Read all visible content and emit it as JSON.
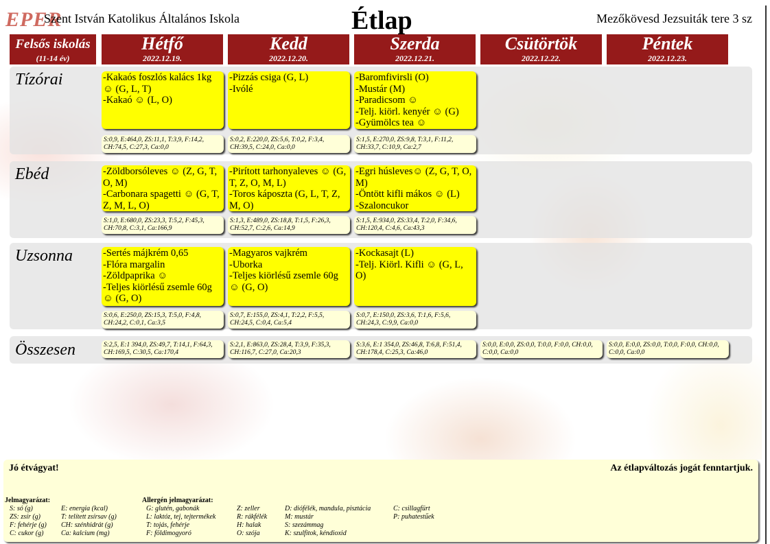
{
  "header": {
    "logo": "EPER",
    "school": "Szent István Katolikus Általános Iskola",
    "title": "Étlap",
    "address": "Mezőkövesd Jezsuiták tere 3 sz"
  },
  "group": {
    "label": "Felsős iskolás",
    "sub": "(11-14 év)"
  },
  "days": [
    {
      "name": "Hétfő",
      "date": "2022.12.19."
    },
    {
      "name": "Kedd",
      "date": "2022.12.20."
    },
    {
      "name": "Szerda",
      "date": "2022.12.21."
    },
    {
      "name": "Csütörtök",
      "date": "2022.12.22."
    },
    {
      "name": "Péntek",
      "date": "2022.12.23."
    }
  ],
  "meals": [
    {
      "label": "Tízórai",
      "menus": [
        [
          "-Kakaós foszlós kalács 1kg ☺ (G, L, T)",
          "-Kakaó ☺ (L, O)"
        ],
        [
          "-Pizzás csiga (G, L)",
          "-Ivólé"
        ],
        [
          "-Baromfivirsli (O)",
          "-Mustár (M)",
          "-Paradicsom ☺",
          "-Telj. kiörl. kenyér ☺ (G)",
          "-Gyümölcs tea ☺"
        ]
      ],
      "nutrition": [
        "S:0,9, E:464,0, ZS:11,1, T:3,9, F:14,2, CH:74,5, C:27,3, Ca:0,0",
        "S:0,2, E:220,0, ZS:5,6, T:0,2, F:3,4, CH:39,5, C:24,0, Ca:0,0",
        "S:1,5, E:270,0, ZS:9,8, T:3,1, F:11,2, CH:33,7, C:10,9, Ca:2,7"
      ]
    },
    {
      "label": "Ebéd",
      "menus": [
        [
          "-Zöldborsóleves ☺ (Z, G, T, O, M)",
          "-Carbonara spagetti ☺ (G, T, Z, M, L, O)"
        ],
        [
          "-Pirított tarhonyaleves ☺ (G, T, Z, O, M, L)",
          "-Toros káposzta (G, L, T, Z, M, O)"
        ],
        [
          "-Egri húsleves☺ (Z, G, T, O, M)",
          "-Öntött kifli mákos ☺ (L)",
          "-Szaloncukor"
        ]
      ],
      "nutrition": [
        "S:1,0, E:680,0, ZS:23,3, T:5,2, F:45,3, CH:70,8, C:3,1, Ca:166,9",
        "S:1,3, E:489,0, ZS:18,8, T:1,5, F:26,3, CH:52,7, C:2,6, Ca:14,9",
        "S:1,5, E:934,0, ZS:33,4, T:2,0, F:34,6, CH:120,4, C:4,6, Ca:43,3"
      ]
    },
    {
      "label": "Uzsonna",
      "menus": [
        [
          "-Sertés májkrém 0,65",
          "-Flóra margalin",
          "-Zöldpaprika ☺",
          "-Teljes kiörlésű zsemle 60g ☺ (G, O)"
        ],
        [
          "-Magyaros vajkrém",
          "-Uborka",
          "-Teljes kiörlésű zsemle 60g ☺ (G, O)"
        ],
        [
          "-Kockasajt (L)",
          "-Telj. Kiörl. Kifli ☺ (G, L, O)"
        ]
      ],
      "nutrition": [
        "S:0,6, E:250,0, ZS:15,3, T:5,0, F:4,8, CH:24,2, C:0,1, Ca:3,5",
        "S:0,7, E:155,0, ZS:4,1, T:2,2, F:5,5, CH:24,5, C:0,4, Ca:5,4",
        "S:0,7, E:150,0, ZS:3,6, T:1,6, F:5,6, CH:24,3, C:9,9, Ca:0,0"
      ]
    },
    {
      "label": "Összesen",
      "menus": [],
      "nutrition": [
        "S:2,5, E:1 394,0, ZS:49,7, T:14,1, F:64,3, CH:169,5, C:30,5, Ca:170,4",
        "S:2,1, E:863,0, ZS:28,4, T:3,9, F:35,3, CH:116,7, C:27,0, Ca:20,3",
        "S:3,6, E:1 354,0, ZS:46,8, T:6,8, F:51,4, CH:178,4, C:25,3, Ca:46,0",
        "S:0,0, E:0,0, ZS:0,0, T:0,0, F:0,0, CH:0,0, C:0,0, Ca:0,0",
        "S:0,0, E:0,0, ZS:0,0, T:0,0, F:0,0, CH:0,0, C:0,0, Ca:0,0"
      ]
    }
  ],
  "footer": {
    "left": "Jó étvágyat!",
    "right": "Az étlapváltozás jogát fenntartjuk.",
    "legend_title": "Jelmagyarázat:",
    "allergen_title": "Allergén jelmagyarázat:",
    "legend_cols": [
      [
        "S: só (g)",
        "ZS: zsír (g)",
        "F: fehérje (g)",
        "C: cukor (g)"
      ],
      [
        "E: energia (kcal)",
        "T: telített zsírsav (g)",
        "CH: szénhidrát (g)",
        "Ca: kalcium (mg)"
      ]
    ],
    "allergen_cols": [
      [
        "G: glutén, gabonák",
        "L: laktóz, tej, tejtermékek",
        "T: tojás, fehérje",
        "F: földimogyoró"
      ],
      [
        "Z: zeller",
        "R: rákfélék",
        "H: halak",
        "O: szója"
      ],
      [
        "D: diófélék, mandula, pisztácia",
        "M: mustár",
        "S: szezámmag",
        "K: szulfitok, kéndioxid"
      ],
      [
        "C: csillagfürt",
        "P: puhatestűek"
      ]
    ]
  },
  "colors": {
    "header_bg": "#951a1a",
    "menu_bg": "#ffff00",
    "nutrition_bg": "#ffffd8"
  }
}
